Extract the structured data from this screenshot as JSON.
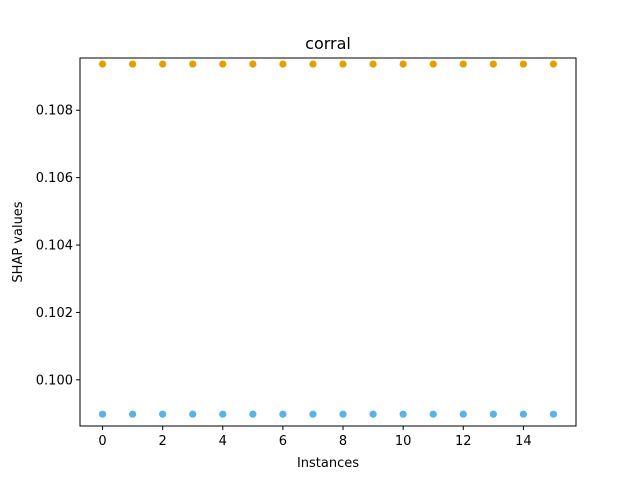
{
  "chart_data": {
    "type": "scatter",
    "title": "corral",
    "xlabel": "Instances",
    "ylabel": "SHAP values",
    "xlim": [
      -0.75,
      15.75
    ],
    "ylim": [
      0.09863,
      0.10955
    ],
    "xticks": [
      0,
      2,
      4,
      6,
      8,
      10,
      12,
      14
    ],
    "yticks": [
      0.1,
      0.102,
      0.104,
      0.106,
      0.108
    ],
    "ytick_labels": [
      "0.100",
      "0.102",
      "0.104",
      "0.106",
      "0.108"
    ],
    "grid": false,
    "legend": "none",
    "x": [
      0,
      1,
      2,
      3,
      4,
      5,
      6,
      7,
      8,
      9,
      10,
      11,
      12,
      13,
      14,
      15
    ],
    "series": [
      {
        "color": "#e69f00",
        "values": [
          0.10937,
          0.10937,
          0.10937,
          0.10937,
          0.10937,
          0.10937,
          0.10937,
          0.10937,
          0.10937,
          0.10937,
          0.10937,
          0.10937,
          0.10937,
          0.10937,
          0.10937,
          0.10937
        ]
      },
      {
        "color": "#56b4e9",
        "values": [
          0.09898,
          0.09898,
          0.09898,
          0.09898,
          0.09898,
          0.09898,
          0.09898,
          0.09898,
          0.09898,
          0.09898,
          0.09898,
          0.09898,
          0.09898,
          0.09898,
          0.09898,
          0.09898
        ]
      }
    ]
  }
}
